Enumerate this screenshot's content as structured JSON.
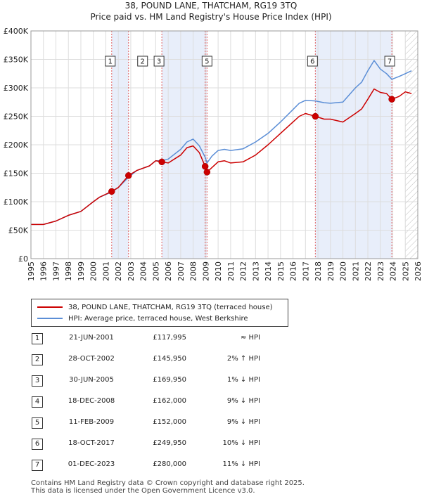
{
  "header": {
    "title": "38, POUND LANE, THATCHAM, RG19 3TQ",
    "subtitle": "Price paid vs. HM Land Registry's House Price Index (HPI)"
  },
  "colors": {
    "property": "#cc0000",
    "hpi": "#5b8ed6",
    "shade": "#e8eefa",
    "vline": "#e06060",
    "hatch": "#bbbbbb"
  },
  "chart_data": {
    "type": "line",
    "title": "Price paid vs. HM Land Registry's House Price Index (HPI)",
    "xlabel": "",
    "ylabel": "",
    "xlim": [
      1995,
      2026
    ],
    "ylim": [
      0,
      400000
    ],
    "y_ticks": [
      0,
      50000,
      100000,
      150000,
      200000,
      250000,
      300000,
      350000,
      400000
    ],
    "y_tick_labels": [
      "£0",
      "£50K",
      "£100K",
      "£150K",
      "£200K",
      "£250K",
      "£300K",
      "£350K",
      "£400K"
    ],
    "x_ticks": [
      1995,
      1996,
      1997,
      1998,
      1999,
      2000,
      2001,
      2002,
      2003,
      2004,
      2005,
      2006,
      2007,
      2008,
      2009,
      2010,
      2011,
      2012,
      2013,
      2014,
      2015,
      2016,
      2017,
      2018,
      2019,
      2020,
      2021,
      2022,
      2023,
      2024,
      2025,
      2026
    ],
    "x_tick_labels": [
      "1995",
      "1996",
      "1997",
      "1998",
      "1999",
      "2000",
      "2001",
      "2002",
      "2003",
      "2004",
      "2005",
      "2006",
      "2007",
      "2008",
      "2009",
      "2010",
      "2011",
      "2012",
      "2013",
      "2014",
      "2015",
      "2016",
      "2017",
      "2018",
      "2019",
      "2020",
      "2021",
      "2022",
      "2023",
      "2024",
      "2025",
      "2026"
    ],
    "forecast_from": 2025.0,
    "series": [
      {
        "name": "38, POUND LANE, THATCHAM, RG19 3TQ (terraced house)",
        "color": "#cc0000",
        "x": [
          1995.0,
          1996.0,
          1997.0,
          1998.0,
          1999.0,
          2000.0,
          2000.5,
          2001.47,
          2002.0,
          2002.82,
          2003.5,
          2004.5,
          2005.0,
          2005.49,
          2006.0,
          2007.0,
          2007.5,
          2008.0,
          2008.5,
          2008.96,
          2009.11,
          2009.5,
          2010.0,
          2010.5,
          2011.0,
          2012.0,
          2013.0,
          2014.0,
          2015.0,
          2016.0,
          2016.5,
          2017.0,
          2017.79,
          2018.5,
          2019.0,
          2020.0,
          2021.0,
          2021.5,
          2022.0,
          2022.5,
          2023.0,
          2023.5,
          2023.92,
          2024.5,
          2025.0,
          2025.5
        ],
        "y": [
          60000,
          60000,
          66000,
          76000,
          83000,
          100000,
          108000,
          117995,
          125000,
          145950,
          155000,
          163000,
          172000,
          169950,
          168000,
          182000,
          195000,
          198000,
          186000,
          162000,
          152000,
          160000,
          170000,
          172000,
          168000,
          170000,
          182000,
          200000,
          220000,
          240000,
          250000,
          255000,
          249950,
          245000,
          245000,
          240000,
          255000,
          263000,
          280000,
          298000,
          292000,
          290000,
          280000,
          285000,
          293000,
          290000
        ]
      },
      {
        "name": "HPI: Average price, terraced house, West Berkshire",
        "color": "#5b8ed6",
        "x": [
          1995.0,
          1996.0,
          1997.0,
          1998.0,
          1999.0,
          2000.0,
          2000.5,
          2001.47,
          2002.0,
          2002.82,
          2003.5,
          2004.5,
          2005.0,
          2005.49,
          2006.0,
          2007.0,
          2007.5,
          2008.0,
          2008.5,
          2008.96,
          2009.11,
          2009.5,
          2010.0,
          2010.5,
          2011.0,
          2012.0,
          2013.0,
          2014.0,
          2015.0,
          2016.0,
          2016.5,
          2017.0,
          2017.79,
          2018.5,
          2019.0,
          2020.0,
          2021.0,
          2021.5,
          2022.0,
          2022.5,
          2023.0,
          2023.5,
          2023.92,
          2024.5,
          2025.0,
          2025.5
        ],
        "y": [
          60000,
          60000,
          66000,
          76000,
          83000,
          100000,
          108000,
          117000,
          125000,
          143000,
          155000,
          163000,
          172000,
          172000,
          175000,
          192000,
          205000,
          210000,
          198000,
          178000,
          168000,
          180000,
          190000,
          192000,
          190000,
          193000,
          205000,
          220000,
          240000,
          262000,
          273000,
          278000,
          277000,
          274000,
          273000,
          275000,
          300000,
          310000,
          330000,
          348000,
          333000,
          325000,
          315000,
          320000,
          325000,
          330000
        ]
      }
    ],
    "sales": [
      {
        "n": "1",
        "x": 2001.47,
        "y": 117995
      },
      {
        "n": "2",
        "x": 2002.82,
        "y": 145950
      },
      {
        "n": "3",
        "x": 2005.49,
        "y": 169950
      },
      {
        "n": "4",
        "x": 2008.96,
        "y": 162000
      },
      {
        "n": "5",
        "x": 2009.11,
        "y": 152000
      },
      {
        "n": "6",
        "x": 2017.79,
        "y": 249950
      },
      {
        "n": "7",
        "x": 2023.92,
        "y": 280000
      }
    ],
    "highlight_spans": [
      [
        2001.47,
        2002.82
      ],
      [
        2005.49,
        2009.11
      ],
      [
        2017.79,
        2023.92
      ]
    ]
  },
  "legend": {
    "property_label": "38, POUND LANE, THATCHAM, RG19 3TQ (terraced house)",
    "hpi_label": "HPI: Average price, terraced house, West Berkshire"
  },
  "transactions": [
    {
      "n": "1",
      "date": "21-JUN-2001",
      "price": "£117,995",
      "hpi": "≈ HPI"
    },
    {
      "n": "2",
      "date": "28-OCT-2002",
      "price": "£145,950",
      "hpi": "2% ↑ HPI"
    },
    {
      "n": "3",
      "date": "30-JUN-2005",
      "price": "£169,950",
      "hpi": "1% ↓ HPI"
    },
    {
      "n": "4",
      "date": "18-DEC-2008",
      "price": "£162,000",
      "hpi": "9% ↓ HPI"
    },
    {
      "n": "5",
      "date": "11-FEB-2009",
      "price": "£152,000",
      "hpi": "9% ↓ HPI"
    },
    {
      "n": "6",
      "date": "18-OCT-2017",
      "price": "£249,950",
      "hpi": "10% ↓ HPI"
    },
    {
      "n": "7",
      "date": "01-DEC-2023",
      "price": "£280,000",
      "hpi": "11% ↓ HPI"
    }
  ],
  "footer": {
    "line1": "Contains HM Land Registry data © Crown copyright and database right 2025.",
    "line2": "This data is licensed under the Open Government Licence v3.0."
  }
}
